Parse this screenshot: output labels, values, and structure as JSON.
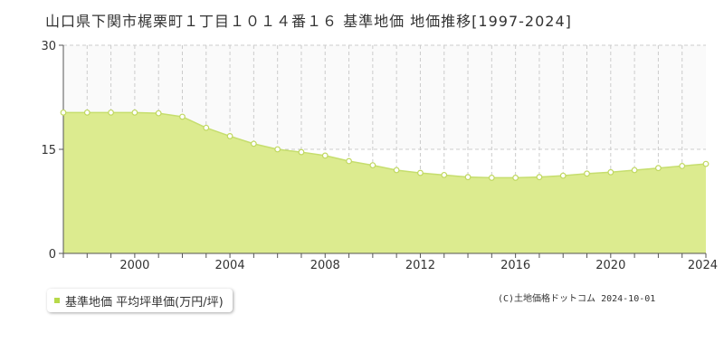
{
  "chart_data": {
    "type": "area",
    "title": "山口県下関市梶栗町１丁目１０１４番１６ 基準地価 地価推移[1997-2024]",
    "x": [
      1997,
      1998,
      1999,
      2000,
      2001,
      2002,
      2003,
      2004,
      2005,
      2006,
      2007,
      2008,
      2009,
      2010,
      2011,
      2012,
      2013,
      2014,
      2015,
      2016,
      2017,
      2018,
      2019,
      2020,
      2021,
      2022,
      2023,
      2024
    ],
    "series": [
      {
        "name": "基準地価 平均坪単価(万円/坪)",
        "values": [
          20.3,
          20.3,
          20.3,
          20.3,
          20.2,
          19.7,
          18.1,
          16.9,
          15.8,
          15.0,
          14.6,
          14.1,
          13.3,
          12.7,
          12.0,
          11.6,
          11.3,
          11.0,
          10.9,
          10.9,
          11.0,
          11.2,
          11.5,
          11.7,
          12.0,
          12.3,
          12.6,
          12.9
        ]
      }
    ],
    "xlim": [
      1997,
      2024
    ],
    "ylim": [
      0,
      30
    ],
    "yticks": [
      0,
      15,
      30
    ],
    "xticks": [
      2000,
      2004,
      2008,
      2012,
      2016,
      2020,
      2024
    ],
    "grid": true,
    "legend_position": "bottom-left",
    "colors": {
      "line": "#c6de6e",
      "fill": "#dceb8f",
      "marker_fill": "#ffffff",
      "marker_stroke": "#c0d860",
      "legend_swatch": "#b7d94a",
      "grid": "#cccccc",
      "axis": "#555555"
    }
  },
  "copyright": "(C)土地価格ドットコム 2024-10-01"
}
